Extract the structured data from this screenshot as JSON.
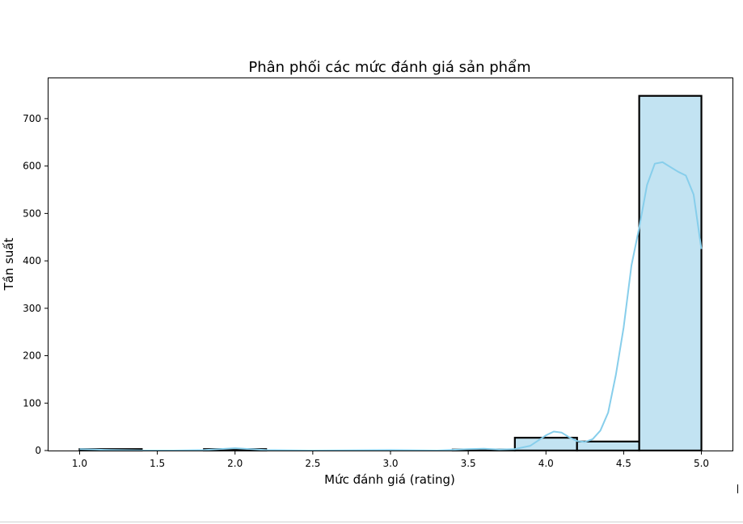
{
  "chart_data": {
    "type": "histogram",
    "title": "Phân phối các mức đánh giá sản phẩm",
    "xlabel": "Mức đánh giá (rating)",
    "ylabel": "Tần suất",
    "xlim": [
      0.8,
      5.2
    ],
    "ylim": [
      0,
      785
    ],
    "xticks": [
      "1.0",
      "1.5",
      "2.0",
      "2.5",
      "3.0",
      "3.5",
      "4.0",
      "4.5",
      "5.0"
    ],
    "yticks": [
      "0",
      "100",
      "200",
      "300",
      "400",
      "500",
      "600",
      "700"
    ],
    "bins": [
      {
        "x0": 1.0,
        "x1": 1.4,
        "count": 3
      },
      {
        "x0": 1.4,
        "x1": 1.8,
        "count": 0
      },
      {
        "x0": 1.8,
        "x1": 2.2,
        "count": 3
      },
      {
        "x0": 2.2,
        "x1": 2.6,
        "count": 0
      },
      {
        "x0": 2.6,
        "x1": 3.0,
        "count": 0
      },
      {
        "x0": 3.0,
        "x1": 3.4,
        "count": 0
      },
      {
        "x0": 3.4,
        "x1": 3.8,
        "count": 2
      },
      {
        "x0": 3.8,
        "x1": 4.2,
        "count": 27
      },
      {
        "x0": 4.2,
        "x1": 4.6,
        "count": 19
      },
      {
        "x0": 4.6,
        "x1": 5.0,
        "count": 748
      }
    ],
    "kde": {
      "x": [
        1.0,
        1.1,
        1.2,
        1.4,
        1.6,
        1.8,
        1.9,
        2.0,
        2.1,
        2.2,
        2.5,
        3.0,
        3.3,
        3.5,
        3.6,
        3.7,
        3.8,
        3.9,
        4.0,
        4.05,
        4.1,
        4.15,
        4.2,
        4.25,
        4.3,
        4.35,
        4.4,
        4.45,
        4.5,
        4.55,
        4.6,
        4.65,
        4.7,
        4.75,
        4.8,
        4.85,
        4.9,
        4.95,
        5.0
      ],
      "y": [
        3,
        2,
        1,
        0,
        0,
        1,
        3,
        5,
        3,
        1,
        0,
        1,
        0,
        3,
        4,
        2,
        3,
        10,
        32,
        40,
        38,
        28,
        20,
        18,
        24,
        42,
        80,
        160,
        260,
        390,
        470,
        560,
        605,
        608,
        598,
        588,
        580,
        540,
        425
      ]
    },
    "colors": {
      "bar_fill": "#c2e3f2",
      "bar_edge": "#000000",
      "kde_line": "#87ceeb"
    },
    "grid": false,
    "legend": "none"
  }
}
